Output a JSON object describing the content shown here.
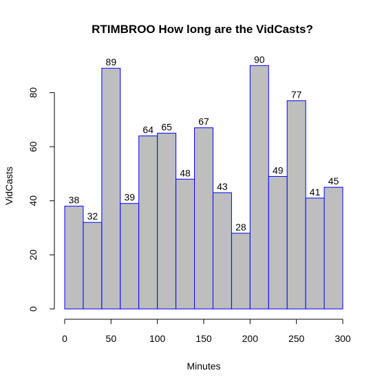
{
  "chart_data": {
    "type": "bar",
    "title": "RTIMBROO How long are the VidCasts?",
    "xlabel": "Minutes",
    "ylabel": "VidCasts",
    "bin_edges": [
      0,
      20,
      40,
      60,
      80,
      100,
      120,
      140,
      160,
      180,
      200,
      220,
      240,
      260,
      280,
      300
    ],
    "values": [
      38,
      32,
      89,
      39,
      64,
      65,
      48,
      67,
      43,
      28,
      90,
      49,
      77,
      41,
      45
    ],
    "xlim": [
      0,
      300
    ],
    "ylim": [
      0,
      90
    ],
    "x_ticks": [
      0,
      50,
      100,
      150,
      200,
      250,
      300
    ],
    "y_ticks": [
      0,
      20,
      40,
      60,
      80
    ],
    "bar_fill": "#bebebe",
    "bar_border": "#0000ff",
    "grid": false,
    "legend": "none"
  }
}
